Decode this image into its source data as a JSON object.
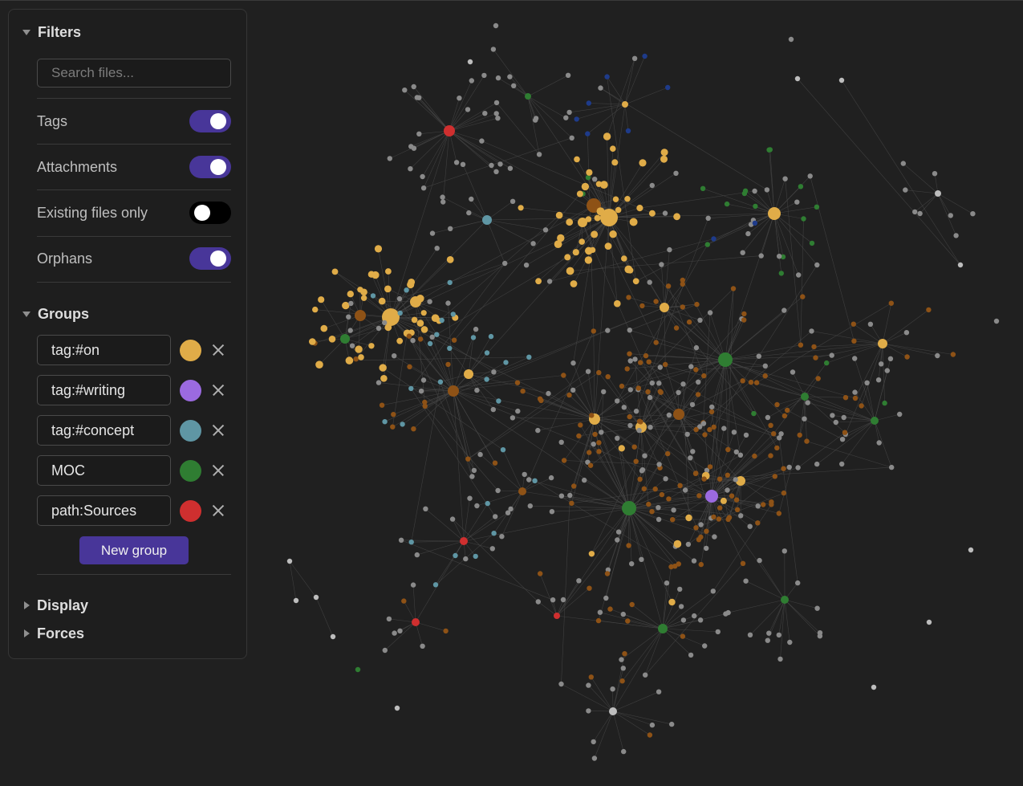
{
  "filters": {
    "title": "Filters",
    "search_placeholder": "Search files...",
    "toggles": [
      {
        "label": "Tags",
        "state": "on"
      },
      {
        "label": "Attachments",
        "state": "on"
      },
      {
        "label": "Existing files only",
        "state": "off"
      },
      {
        "label": "Orphans",
        "state": "on"
      }
    ]
  },
  "groups": {
    "title": "Groups",
    "items": [
      {
        "query": "tag:#on",
        "color": "#e0ac48"
      },
      {
        "query": "tag:#writing",
        "color": "#9b6ae0"
      },
      {
        "query": "tag:#concept",
        "color": "#5f96a4"
      },
      {
        "query": "MOC",
        "color": "#2f7d32"
      },
      {
        "query": "path:Sources",
        "color": "#cf2f2f"
      }
    ],
    "new_group_label": "New group"
  },
  "display": {
    "title": "Display"
  },
  "forces": {
    "title": "Forces"
  },
  "graph_colors": {
    "default_node": "#8a8a8a",
    "link": "#4a4a4a",
    "orange_node": "#8e5216",
    "blue_node": "#1e3b8a",
    "light_node": "#bdbdbd"
  }
}
